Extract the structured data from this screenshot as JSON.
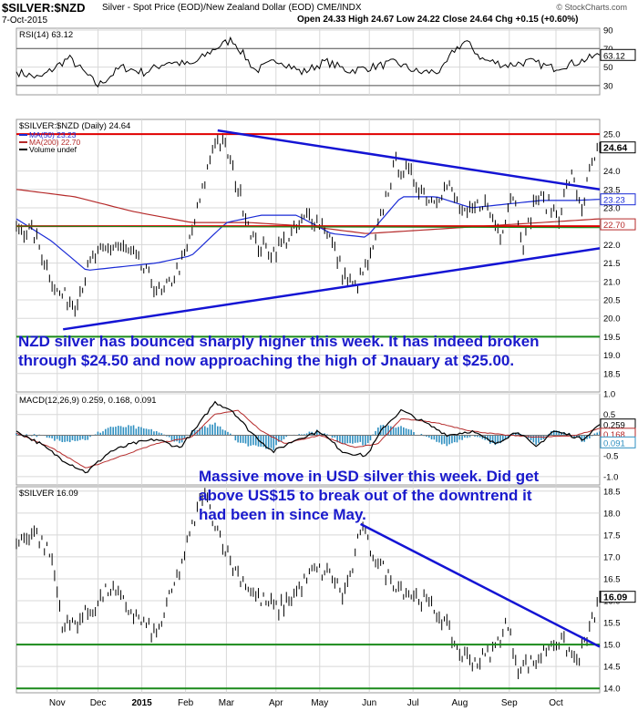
{
  "header": {
    "symbol": "$SILVER:$NZD",
    "description": "Silver - Spot Price (EOD)/New Zealand Dollar (EOD)  CME/INDX",
    "date": "7-Oct-2015",
    "ohlc": "Open 24.33  High 24.67  Low 24.22  Close 24.64  Chg +0.15 (+0.60%)",
    "copyright": "© StockCharts.com"
  },
  "colors": {
    "price": "#000000",
    "ma50": "#1a2bd6",
    "ma200": "#b52a2a",
    "resistance": "#e00000",
    "support": "#1a8a1a",
    "trendline": "#1414d4",
    "annotation": "#1a1acc",
    "histogram": "#2e8fc0",
    "grid": "#d8d8d8"
  },
  "annotations": {
    "nzd": "NZD silver has bounced sharply higher this week. It has indeed broken through $24.50 and now approaching the high of Jnauary at $25.00.",
    "usd": "Massive move in USD silver this week. Did get above US$15 to break out of the downtrend it had been in since May."
  },
  "chart_data": [
    {
      "type": "line",
      "label": "RSI(14) 63.12",
      "ylim": [
        20,
        92
      ],
      "ticks": [
        {
          "v": 90,
          "t": "90"
        },
        {
          "v": 70,
          "t": "70"
        },
        {
          "v": 50,
          "t": "50"
        },
        {
          "v": 30,
          "t": "30"
        }
      ],
      "reference_lines": [
        70,
        30
      ],
      "last_value_label": "63.12",
      "last": 63.12,
      "keypoints": [
        [
          0,
          45
        ],
        [
          4,
          38
        ],
        [
          9,
          60
        ],
        [
          14,
          30
        ],
        [
          18,
          50
        ],
        [
          22,
          44
        ],
        [
          26,
          56
        ],
        [
          30,
          52
        ],
        [
          34,
          70
        ],
        [
          37,
          80
        ],
        [
          41,
          46
        ],
        [
          45,
          58
        ],
        [
          49,
          44
        ],
        [
          53,
          56
        ],
        [
          57,
          46
        ],
        [
          61,
          50
        ],
        [
          65,
          55
        ],
        [
          69,
          44
        ],
        [
          73,
          46
        ],
        [
          75,
          68
        ],
        [
          77,
          78
        ],
        [
          80,
          58
        ],
        [
          84,
          52
        ],
        [
          88,
          56
        ],
        [
          92,
          49
        ],
        [
          96,
          55
        ],
        [
          100,
          63.12
        ]
      ]
    },
    {
      "type": "line",
      "label": "$SILVER:$NZD (Daily) 24.64",
      "legend": [
        "MA(50) 23.23",
        "MA(200) 22.70",
        "Volume undef"
      ],
      "ylim": [
        18.0,
        25.4
      ],
      "ticks": [
        {
          "v": 25.0,
          "t": "25.0"
        },
        {
          "v": 24.0,
          "t": "24.0"
        },
        {
          "v": 23.5,
          "t": "23.5"
        },
        {
          "v": 23.0,
          "t": "23.0"
        },
        {
          "v": 22.5,
          "t": "22.5"
        },
        {
          "v": 22.0,
          "t": "22.0"
        },
        {
          "v": 21.5,
          "t": "21.5"
        },
        {
          "v": 21.0,
          "t": "21.0"
        },
        {
          "v": 20.5,
          "t": "20.5"
        },
        {
          "v": 20.0,
          "t": "20.0"
        },
        {
          "v": 19.5,
          "t": "19.5"
        },
        {
          "v": 19.0,
          "t": "19.0"
        },
        {
          "v": 18.5,
          "t": "18.5"
        }
      ],
      "value_labels": [
        {
          "v": 24.64,
          "t": "24.64"
        },
        {
          "v": 23.23,
          "t": "23.23"
        },
        {
          "v": 22.7,
          "t": "22.70"
        }
      ],
      "last": 24.64,
      "ma50_last": 23.23,
      "ma200_last": 22.7,
      "resistance": 25.0,
      "support_lines": [
        22.5,
        19.5
      ],
      "trendlines": [
        {
          "x1": 34.5,
          "y1": 25.1,
          "x2": 100,
          "y2": 23.5
        },
        {
          "x1": 8,
          "y1": 19.7,
          "x2": 100,
          "y2": 21.9
        }
      ],
      "keypoints": [
        [
          0,
          22.5
        ],
        [
          3,
          22.3
        ],
        [
          7,
          20.7
        ],
        [
          10,
          20.4
        ],
        [
          13,
          21.6
        ],
        [
          17,
          22.0
        ],
        [
          20,
          21.7
        ],
        [
          25,
          20.6
        ],
        [
          29,
          21.7
        ],
        [
          32,
          23.5
        ],
        [
          34,
          24.9
        ],
        [
          36,
          24.6
        ],
        [
          38,
          23.5
        ],
        [
          41,
          22.0
        ],
        [
          44,
          21.8
        ],
        [
          48,
          22.4
        ],
        [
          50,
          22.8
        ],
        [
          53,
          22.5
        ],
        [
          56,
          21.2
        ],
        [
          58,
          20.8
        ],
        [
          61,
          21.7
        ],
        [
          63,
          23.1
        ],
        [
          65,
          24.2
        ],
        [
          68,
          23.8
        ],
        [
          71,
          23.2
        ],
        [
          74,
          23.6
        ],
        [
          77,
          22.7
        ],
        [
          80,
          23.2
        ],
        [
          83,
          22.3
        ],
        [
          85,
          23.5
        ],
        [
          87,
          22.0
        ],
        [
          89,
          23.3
        ],
        [
          91,
          23.1
        ],
        [
          93,
          22.8
        ],
        [
          95,
          23.9
        ],
        [
          97,
          23.0
        ],
        [
          98.5,
          24.1
        ],
        [
          100,
          24.64
        ]
      ],
      "ma50_keypoints": [
        [
          0,
          22.7
        ],
        [
          6,
          22.1
        ],
        [
          12,
          21.3
        ],
        [
          18,
          21.4
        ],
        [
          24,
          21.5
        ],
        [
          30,
          21.7
        ],
        [
          36,
          22.6
        ],
        [
          42,
          22.8
        ],
        [
          48,
          22.8
        ],
        [
          54,
          22.3
        ],
        [
          60,
          22.2
        ],
        [
          66,
          23.3
        ],
        [
          72,
          23.3
        ],
        [
          78,
          23.0
        ],
        [
          84,
          23.1
        ],
        [
          90,
          23.2
        ],
        [
          96,
          23.2
        ],
        [
          100,
          23.23
        ]
      ],
      "ma200_keypoints": [
        [
          0,
          23.5
        ],
        [
          10,
          23.3
        ],
        [
          20,
          22.9
        ],
        [
          30,
          22.6
        ],
        [
          40,
          22.6
        ],
        [
          50,
          22.5
        ],
        [
          60,
          22.3
        ],
        [
          70,
          22.4
        ],
        [
          80,
          22.5
        ],
        [
          90,
          22.6
        ],
        [
          100,
          22.7
        ]
      ]
    },
    {
      "type": "line",
      "label": "MACD(12,26,9) 0.259, 0.168, 0.091",
      "ylim": [
        -1.2,
        1.0
      ],
      "ticks": [
        {
          "v": 1.0,
          "t": "1.0"
        },
        {
          "v": 0.5,
          "t": "0.5"
        },
        {
          "v": 0.0,
          "t": "0.0"
        },
        {
          "v": -0.5,
          "t": "-0.5"
        },
        {
          "v": -1.0,
          "t": "-1.0"
        }
      ],
      "value_labels": [
        {
          "v": 0.259,
          "t": "0.259"
        },
        {
          "v": 0.168,
          "t": "0.168"
        },
        {
          "v": 0.091,
          "t": "0.091"
        }
      ],
      "macd_keypoints": [
        [
          0,
          0.1
        ],
        [
          4,
          -0.2
        ],
        [
          8,
          -0.6
        ],
        [
          12,
          -0.9
        ],
        [
          16,
          -0.4
        ],
        [
          20,
          -0.2
        ],
        [
          24,
          -0.1
        ],
        [
          28,
          -0.3
        ],
        [
          31,
          0.2
        ],
        [
          34,
          0.8
        ],
        [
          37,
          0.6
        ],
        [
          40,
          0.1
        ],
        [
          44,
          -0.4
        ],
        [
          48,
          -0.1
        ],
        [
          52,
          0.1
        ],
        [
          56,
          -0.4
        ],
        [
          60,
          -0.5
        ],
        [
          63,
          0.2
        ],
        [
          66,
          0.6
        ],
        [
          70,
          0.3
        ],
        [
          74,
          0.0
        ],
        [
          78,
          0.1
        ],
        [
          82,
          -0.2
        ],
        [
          86,
          0.1
        ],
        [
          89,
          -0.3
        ],
        [
          92,
          0.1
        ],
        [
          95,
          0.0
        ],
        [
          97,
          -0.1
        ],
        [
          100,
          0.259
        ]
      ],
      "signal_keypoints": [
        [
          0,
          0.05
        ],
        [
          6,
          -0.3
        ],
        [
          12,
          -0.8
        ],
        [
          18,
          -0.5
        ],
        [
          24,
          -0.2
        ],
        [
          30,
          -0.05
        ],
        [
          34,
          0.5
        ],
        [
          38,
          0.6
        ],
        [
          42,
          0.1
        ],
        [
          46,
          -0.2
        ],
        [
          52,
          0.0
        ],
        [
          58,
          -0.3
        ],
        [
          62,
          -0.2
        ],
        [
          66,
          0.4
        ],
        [
          72,
          0.3
        ],
        [
          78,
          0.1
        ],
        [
          84,
          0.0
        ],
        [
          90,
          -0.05
        ],
        [
          96,
          0.0
        ],
        [
          100,
          0.168
        ]
      ]
    },
    {
      "type": "line",
      "label": "$SILVER 16.09",
      "ylim": [
        13.9,
        18.6
      ],
      "ticks": [
        {
          "v": 18.5,
          "t": "18.5"
        },
        {
          "v": 18.0,
          "t": "18.0"
        },
        {
          "v": 17.5,
          "t": "17.5"
        },
        {
          "v": 17.0,
          "t": "17.0"
        },
        {
          "v": 16.5,
          "t": "16.5"
        },
        {
          "v": 16.0,
          "t": "16.0"
        },
        {
          "v": 15.5,
          "t": "15.5"
        },
        {
          "v": 15.0,
          "t": "15.0"
        },
        {
          "v": 14.5,
          "t": "14.5"
        },
        {
          "v": 14.0,
          "t": "14.0"
        }
      ],
      "value_labels": [
        {
          "v": 16.09,
          "t": "16.09"
        }
      ],
      "last": 16.09,
      "support_lines": [
        15.0,
        14.0
      ],
      "trendlines": [
        {
          "x1": 59,
          "y1": 17.75,
          "x2": 100,
          "y2": 14.95
        }
      ],
      "keypoints": [
        [
          0,
          17.3
        ],
        [
          3,
          17.6
        ],
        [
          6,
          17.0
        ],
        [
          8,
          15.4
        ],
        [
          10,
          15.5
        ],
        [
          13,
          15.8
        ],
        [
          16,
          16.3
        ],
        [
          20,
          15.7
        ],
        [
          24,
          15.2
        ],
        [
          28,
          16.7
        ],
        [
          30,
          17.6
        ],
        [
          32,
          18.5
        ],
        [
          34,
          17.8
        ],
        [
          37,
          16.8
        ],
        [
          41,
          16.1
        ],
        [
          45,
          15.8
        ],
        [
          48,
          16.2
        ],
        [
          51,
          16.7
        ],
        [
          54,
          16.6
        ],
        [
          56,
          16.1
        ],
        [
          58,
          16.9
        ],
        [
          59,
          17.7
        ],
        [
          61,
          17.1
        ],
        [
          64,
          16.5
        ],
        [
          67,
          16.2
        ],
        [
          70,
          16.0
        ],
        [
          73,
          15.6
        ],
        [
          76,
          14.8
        ],
        [
          79,
          14.6
        ],
        [
          82,
          14.9
        ],
        [
          84,
          15.5
        ],
        [
          86,
          14.5
        ],
        [
          89,
          14.6
        ],
        [
          92,
          15.1
        ],
        [
          94,
          15.0
        ],
        [
          96,
          14.6
        ],
        [
          98,
          15.2
        ],
        [
          100,
          16.09
        ]
      ]
    }
  ],
  "x_axis": {
    "labels": [
      {
        "pos": 7,
        "text": "Nov",
        "bold": false
      },
      {
        "pos": 14,
        "text": "Dec",
        "bold": false
      },
      {
        "pos": 21.5,
        "text": "2015",
        "bold": true
      },
      {
        "pos": 29,
        "text": "Feb",
        "bold": false
      },
      {
        "pos": 36,
        "text": "Mar",
        "bold": false
      },
      {
        "pos": 44.5,
        "text": "Apr",
        "bold": false
      },
      {
        "pos": 52,
        "text": "May",
        "bold": false
      },
      {
        "pos": 60.5,
        "text": "Jun",
        "bold": false
      },
      {
        "pos": 68,
        "text": "Jul",
        "bold": false
      },
      {
        "pos": 76,
        "text": "Aug",
        "bold": false
      },
      {
        "pos": 84.5,
        "text": "Sep",
        "bold": false
      },
      {
        "pos": 92.5,
        "text": "Oct",
        "bold": false
      }
    ]
  }
}
